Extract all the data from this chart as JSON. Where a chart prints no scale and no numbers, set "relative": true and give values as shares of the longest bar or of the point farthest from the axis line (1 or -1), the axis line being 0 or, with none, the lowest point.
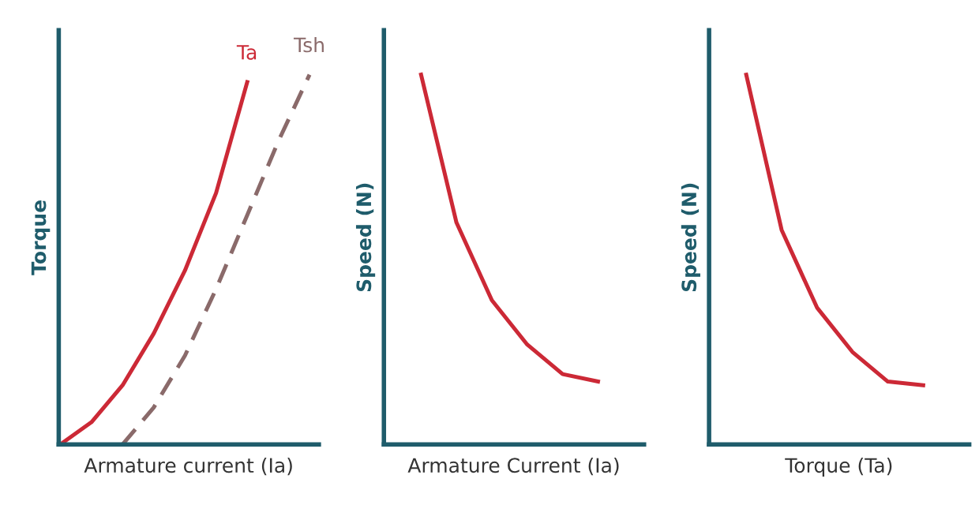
{
  "chart_data": [
    {
      "type": "line",
      "relative": true,
      "ylabel": "Torque",
      "xlabel": "Armature current (Ia)",
      "categories": [
        null,
        null,
        null,
        null,
        null,
        null,
        null,
        null,
        null
      ],
      "tick_labels": false,
      "grid": false,
      "legend": false,
      "marker": "none",
      "series": [
        {
          "name": "Ta",
          "color": "#cc2936",
          "line_style": "solid",
          "values": [
            0,
            0.06,
            0.16,
            0.3,
            0.47,
            0.68,
            0.98,
            null,
            null
          ]
        },
        {
          "name": "Tsh",
          "color": "#8a6a6a",
          "line_style": "dashed",
          "values": [
            null,
            null,
            0,
            0.1,
            0.24,
            0.42,
            0.62,
            0.82,
            1.0
          ]
        }
      ]
    },
    {
      "type": "line",
      "relative": true,
      "ylabel": "Speed (N)",
      "xlabel": "Armature Current (Ia)",
      "categories": [
        null,
        null,
        null,
        null,
        null,
        null,
        null,
        null
      ],
      "tick_labels": false,
      "grid": false,
      "legend": false,
      "marker": "none",
      "series": [
        {
          "color": "#cc2936",
          "line_style": "solid",
          "values": [
            null,
            1.0,
            0.6,
            0.39,
            0.27,
            0.19,
            0.17,
            null
          ]
        }
      ]
    },
    {
      "type": "line",
      "relative": true,
      "ylabel": "Speed (N)",
      "xlabel": "Torque (Ta)",
      "categories": [
        null,
        null,
        null,
        null,
        null,
        null,
        null,
        null
      ],
      "tick_labels": false,
      "grid": false,
      "legend": false,
      "marker": "none",
      "series": [
        {
          "color": "#cc2936",
          "line_style": "solid",
          "values": [
            null,
            1.0,
            0.58,
            0.37,
            0.25,
            0.17,
            0.16,
            null
          ]
        }
      ]
    }
  ]
}
